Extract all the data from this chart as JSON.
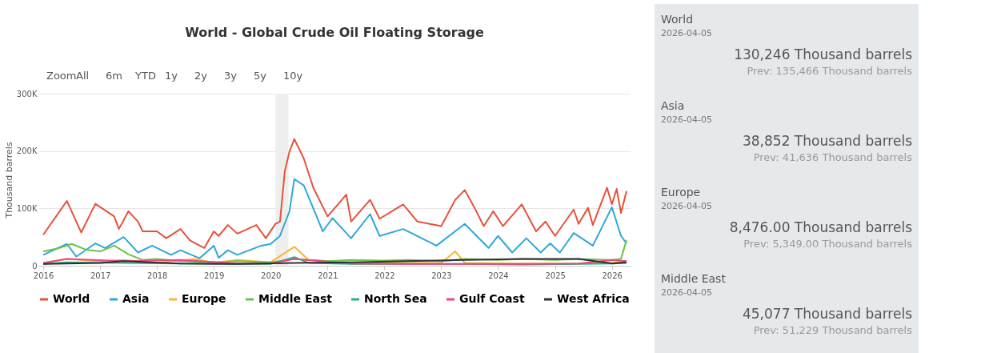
{
  "chart_data": [
    {
      "type": "line",
      "title": "World - Global Crude Oil Floating Storage",
      "ylabel": "Thousand barrels",
      "annotations": [
        "Zoom",
        "All",
        "6m",
        "YTD",
        "1y",
        "2y",
        "3y",
        "5y",
        "10y"
      ],
      "xlim": [
        "2015-12-01",
        "2026-05-01"
      ],
      "xticks": [
        "2016",
        "2017",
        "2018",
        "2019",
        "2020",
        "2021",
        "2022",
        "2023",
        "2024",
        "2025",
        "2026"
      ],
      "ylim": [
        0,
        300000
      ],
      "yticks": [
        {
          "value": 0,
          "label": "0"
        },
        {
          "value": 100000,
          "label": "100K"
        },
        {
          "value": 200000,
          "label": "200K"
        },
        {
          "value": 300000,
          "label": "300K"
        }
      ],
      "grid": "y",
      "legend": "bottom",
      "bands": [
        {
          "axis": "x",
          "from": "2020-02-01",
          "to": "2020-04-25",
          "color": "#eeeeee"
        }
      ],
      "series": [
        {
          "name": "World",
          "color": "#e8513a",
          "x": [
            "2016-01",
            "2016-06",
            "2016-09",
            "2016-12",
            "2017-04",
            "2017-05",
            "2017-07",
            "2017-09",
            "2017-10",
            "2018-01",
            "2018-03",
            "2018-06",
            "2018-08",
            "2018-11",
            "2019-01",
            "2019-02",
            "2019-04",
            "2019-06",
            "2019-10",
            "2019-12",
            "2020-02",
            "2020-03",
            "2020-04",
            "2020-05",
            "2020-06",
            "2020-08",
            "2020-10",
            "2021-01",
            "2021-05",
            "2021-06",
            "2021-10",
            "2021-12",
            "2022-05",
            "2022-08",
            "2023-01",
            "2023-04",
            "2023-06",
            "2023-08",
            "2023-10",
            "2023-12",
            "2024-02",
            "2024-06",
            "2024-09",
            "2024-11",
            "2025-01",
            "2025-05",
            "2025-06",
            "2025-08",
            "2025-09",
            "2025-12",
            "2026-01",
            "2026-02",
            "2026-03",
            "2026-04-05"
          ],
          "values": [
            54000,
            113000,
            58000,
            108000,
            86000,
            64000,
            95000,
            77000,
            60000,
            60000,
            48000,
            64000,
            44000,
            31000,
            60000,
            52000,
            71000,
            56000,
            71000,
            48000,
            73000,
            77000,
            165000,
            199000,
            221000,
            187000,
            136000,
            86000,
            124000,
            77000,
            115000,
            82000,
            107000,
            77000,
            69000,
            115000,
            132000,
            102000,
            69000,
            95000,
            69000,
            107000,
            60000,
            77000,
            52000,
            98000,
            73000,
            101000,
            71000,
            136000,
            107000,
            134000,
            92000,
            130246
          ]
        },
        {
          "name": "Asia",
          "color": "#30a8d8",
          "x": [
            "2016-01",
            "2016-06",
            "2016-08",
            "2016-12",
            "2017-02",
            "2017-06",
            "2017-09",
            "2017-12",
            "2018-04",
            "2018-06",
            "2018-10",
            "2019-01",
            "2019-02",
            "2019-04",
            "2019-06",
            "2019-11",
            "2020-01",
            "2020-03",
            "2020-05",
            "2020-06",
            "2020-08",
            "2020-12",
            "2021-02",
            "2021-06",
            "2021-10",
            "2021-12",
            "2022-05",
            "2022-12",
            "2023-06",
            "2023-11",
            "2024-01",
            "2024-04",
            "2024-07",
            "2024-10",
            "2024-12",
            "2025-02",
            "2025-05",
            "2025-09",
            "2026-01",
            "2026-03",
            "2026-04-05"
          ],
          "values": [
            19000,
            38000,
            16000,
            39000,
            31000,
            50000,
            23000,
            35000,
            19000,
            27000,
            13000,
            35000,
            14000,
            27000,
            19000,
            35000,
            38000,
            52000,
            95000,
            151000,
            140000,
            60000,
            83000,
            48000,
            90000,
            52000,
            64000,
            35000,
            73000,
            31000,
            52000,
            23000,
            48000,
            23000,
            39000,
            23000,
            57000,
            35000,
            102000,
            52000,
            38852
          ]
        },
        {
          "name": "Europe",
          "color": "#f6b731",
          "x": [
            "2016-01",
            "2016-06",
            "2017-01",
            "2017-06",
            "2018-01",
            "2018-09",
            "2019-01",
            "2019-06",
            "2020-01",
            "2020-06",
            "2020-09",
            "2021-06",
            "2022-01",
            "2023-01",
            "2023-04",
            "2023-06",
            "2024-06",
            "2025-06",
            "2026-01",
            "2026-04-05"
          ],
          "values": [
            5000,
            12000,
            8000,
            10000,
            5000,
            12000,
            5000,
            10000,
            6000,
            33000,
            10000,
            6000,
            5000,
            5000,
            25000,
            5000,
            4000,
            4000,
            5000,
            8476
          ]
        },
        {
          "name": "Middle East",
          "color": "#6cc24a",
          "x": [
            "2016-01",
            "2016-04",
            "2016-07",
            "2016-10",
            "2017-01",
            "2017-04",
            "2017-07",
            "2017-10",
            "2018-01",
            "2018-06",
            "2019-01",
            "2019-06",
            "2020-01",
            "2020-06",
            "2021-01",
            "2021-06",
            "2022-01",
            "2022-06",
            "2023-01",
            "2023-06",
            "2024-01",
            "2024-06",
            "2025-01",
            "2025-06",
            "2026-01",
            "2026-03",
            "2026-04-05"
          ],
          "values": [
            25000,
            30000,
            38000,
            28000,
            25000,
            35000,
            20000,
            10000,
            12000,
            8000,
            6000,
            8000,
            6000,
            12000,
            8000,
            10000,
            9000,
            10000,
            8000,
            12000,
            10000,
            12000,
            10000,
            12000,
            10000,
            12000,
            45077
          ]
        },
        {
          "name": "North Sea",
          "color": "#29b08b",
          "x": [
            "2016-01",
            "2016-06",
            "2017-06",
            "2018-06",
            "2019-06",
            "2020-01",
            "2020-06",
            "2020-09",
            "2021-06",
            "2022-06",
            "2023-06",
            "2024-06",
            "2025-06",
            "2026-01",
            "2026-04-05"
          ],
          "values": [
            3000,
            6000,
            5000,
            4000,
            3000,
            3000,
            15000,
            5000,
            3000,
            3000,
            3000,
            2000,
            3000,
            4000,
            5000
          ]
        },
        {
          "name": "Gulf Coast",
          "color": "#f0457a",
          "x": [
            "2016-01",
            "2016-06",
            "2017-06",
            "2018-06",
            "2019-06",
            "2020-01",
            "2020-06",
            "2021-06",
            "2022-06",
            "2023-06",
            "2024-06",
            "2025-06",
            "2026-01",
            "2026-04-05"
          ],
          "values": [
            5000,
            12000,
            8000,
            10000,
            4000,
            4000,
            12000,
            4000,
            3000,
            3000,
            3000,
            4000,
            10000,
            8000
          ]
        },
        {
          "name": "West Africa",
          "color": "#2d2f3b",
          "x": [
            "2016-01",
            "2017-01",
            "2017-06",
            "2018-06",
            "2019-06",
            "2020-06",
            "2021-06",
            "2022-06",
            "2023-06",
            "2024-06",
            "2025-06",
            "2026-01",
            "2026-04-05"
          ],
          "values": [
            3000,
            5000,
            8000,
            4000,
            3000,
            5000,
            6000,
            8000,
            10000,
            12000,
            12000,
            4000,
            6000
          ]
        }
      ]
    },
    {
      "type": "other",
      "annotations": [
        "World",
        "2026-04-05",
        "130,246 Thousand barrels",
        "Prev: 135,466 Thousand barrels",
        "Asia",
        "2026-04-05",
        "38,852 Thousand barrels",
        "Prev: 41,636 Thousand barrels",
        "Europe",
        "2026-04-05",
        "8,476.00 Thousand barrels",
        "Prev: 5,349.00 Thousand barrels",
        "Middle East",
        "2026-04-05",
        "45,077 Thousand barrels",
        "Prev: 51,229 Thousand barrels"
      ]
    }
  ]
}
